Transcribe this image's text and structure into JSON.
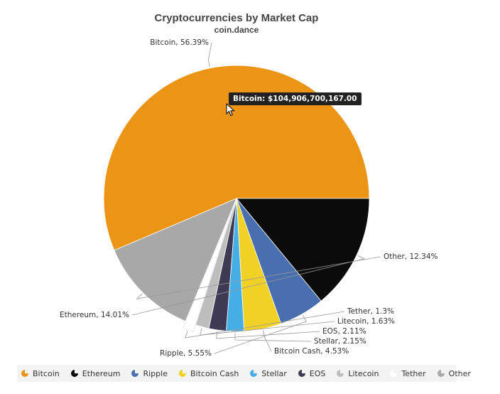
{
  "chart_data": {
    "type": "pie",
    "title": "Cryptocurrencies by Market Cap",
    "subtitle": "coin.dance",
    "slices": [
      {
        "name": "Bitcoin",
        "value": 56.39,
        "label": "Bitcoin, 56.39%",
        "color": "#ec9416"
      },
      {
        "name": "Ethereum",
        "value": 14.01,
        "label": "Ethereum, 14.01%",
        "color": "#0b0b0b"
      },
      {
        "name": "Ripple",
        "value": 5.55,
        "label": "Ripple, 5.55%",
        "color": "#4a6fae"
      },
      {
        "name": "Bitcoin Cash",
        "value": 4.53,
        "label": "Bitcoin Cash, 4.53%",
        "color": "#f1d126"
      },
      {
        "name": "Stellar",
        "value": 2.15,
        "label": "Stellar, 2.15%",
        "color": "#46aee6"
      },
      {
        "name": "EOS",
        "value": 2.11,
        "label": "EOS, 2.11%",
        "color": "#3f3a53"
      },
      {
        "name": "Litecoin",
        "value": 1.63,
        "label": "Litecoin, 1.63%",
        "color": "#bdbdbd"
      },
      {
        "name": "Tether",
        "value": 1.3,
        "label": "Tether, 1.3%",
        "color": "#ffffff"
      },
      {
        "name": "Other",
        "value": 12.34,
        "label": "Other, 12.34%",
        "color": "#a8a8a8"
      }
    ],
    "legend_position": "bottom",
    "tooltip": "Bitcoin: $104,906,700,167.00"
  }
}
